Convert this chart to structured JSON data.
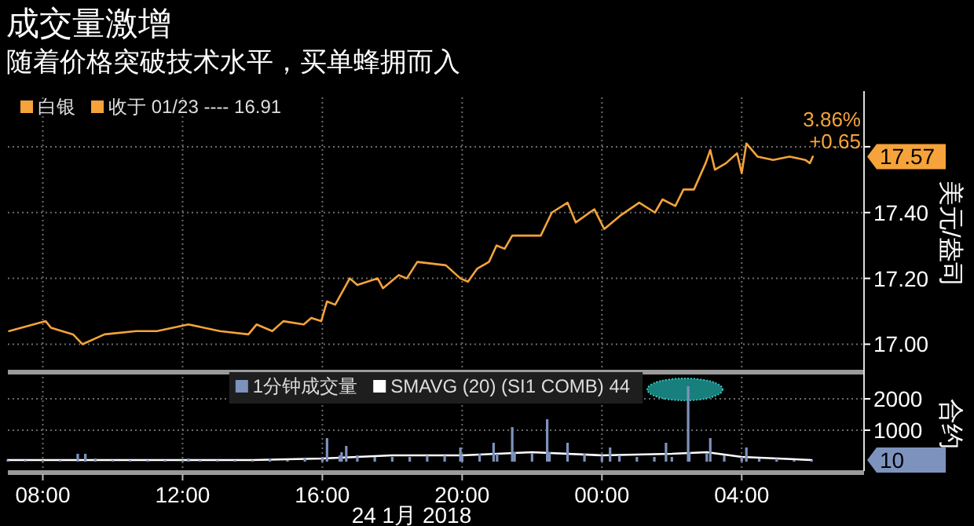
{
  "chart_data": [
    {
      "type": "line",
      "title": "成交量激增",
      "subtitle": "随着价格突破技术水平，买单蜂拥而入",
      "ylabel": "美元/盎司",
      "xlim": [
        "2018-01-24T07:00",
        "2018-01-25T07:30"
      ],
      "ylim": [
        16.92,
        17.75
      ],
      "xticks": [
        "2018-01-24T08:00",
        "2018-01-24T12:00",
        "2018-01-24T16:00",
        "2018-01-24T20:00",
        "2018-01-25T00:00",
        "2018-01-25T04:00"
      ],
      "yticks": [
        {
          "value": 17,
          "label": "17.00"
        },
        {
          "value": 17.2,
          "label": "17.20"
        },
        {
          "value": 17.4,
          "label": "17.40"
        },
        {
          "value": 17.6,
          "label": null
        }
      ],
      "tick_labels": "y",
      "grid": true,
      "legend": "top left",
      "annotations": [
        "收于 01/23 ---- 16.91",
        "3.86%",
        "+0.65",
        "17.57"
      ],
      "series": [
        {
          "name": "白银",
          "color": "#f5a33a",
          "x": [
            "2018-01-24T07:02",
            "2018-01-24T08:05",
            "2018-01-24T08:14",
            "2018-01-24T08:52",
            "2018-01-24T09:08",
            "2018-01-24T09:46",
            "2018-01-24T10:40",
            "2018-01-24T11:16",
            "2018-01-24T12:10",
            "2018-01-24T13:04",
            "2018-01-24T13:53",
            "2018-01-24T14:07",
            "2018-01-24T14:34",
            "2018-01-24T14:53",
            "2018-01-24T15:28",
            "2018-01-24T15:41",
            "2018-01-24T15:58",
            "2018-01-24T16:08",
            "2018-01-24T16:22",
            "2018-01-24T16:47",
            "2018-01-24T17:00",
            "2018-01-24T17:35",
            "2018-01-24T17:44",
            "2018-01-24T18:11",
            "2018-01-24T18:25",
            "2018-01-24T18:43",
            "2018-01-24T19:32",
            "2018-01-24T19:57",
            "2018-01-24T20:10",
            "2018-01-24T20:26",
            "2018-01-24T20:46",
            "2018-01-24T20:59",
            "2018-01-24T21:13",
            "2018-01-24T21:26",
            "2018-01-24T22:15",
            "2018-01-24T22:34",
            "2018-01-24T23:01",
            "2018-01-24T23:15",
            "2018-01-24T23:47",
            "2018-01-25T00:04",
            "2018-01-25T00:31",
            "2018-01-25T01:04",
            "2018-01-25T01:31",
            "2018-01-25T01:44",
            "2018-01-25T02:06",
            "2018-01-25T02:20",
            "2018-01-25T02:38",
            "2018-01-25T02:58",
            "2018-01-25T03:06",
            "2018-01-25T03:14",
            "2018-01-25T03:33",
            "2018-01-25T03:52",
            "2018-01-25T04:00",
            "2018-01-25T04:08",
            "2018-01-25T04:27",
            "2018-01-25T04:54",
            "2018-01-25T05:22",
            "2018-01-25T05:49",
            "2018-01-25T05:57",
            "2018-01-25T06:02"
          ],
          "values": [
            17.04,
            17.07,
            17.05,
            17.03,
            17.0,
            17.03,
            17.04,
            17.04,
            17.06,
            17.04,
            17.03,
            17.06,
            17.04,
            17.07,
            17.06,
            17.08,
            17.07,
            17.13,
            17.12,
            17.2,
            17.18,
            17.2,
            17.17,
            17.21,
            17.2,
            17.25,
            17.24,
            17.2,
            17.19,
            17.23,
            17.25,
            17.3,
            17.29,
            17.33,
            17.33,
            17.4,
            17.43,
            17.37,
            17.41,
            17.35,
            17.39,
            17.43,
            17.4,
            17.44,
            17.42,
            17.47,
            17.47,
            17.55,
            17.59,
            17.53,
            17.55,
            17.58,
            17.52,
            17.61,
            17.57,
            17.56,
            17.57,
            17.56,
            17.55,
            17.57
          ]
        }
      ]
    },
    {
      "type": "bar",
      "ylabel": "合约",
      "xlabel": "24 1月 2018",
      "xlim": [
        "2018-01-24T07:00",
        "2018-01-25T07:30"
      ],
      "ylim": [
        -300,
        2700
      ],
      "xticks": [
        {
          "value": "2018-01-24T08:00",
          "label": "08:00"
        },
        {
          "value": "2018-01-24T12:00",
          "label": "12:00"
        },
        {
          "value": "2018-01-24T16:00",
          "label": "16:00"
        },
        {
          "value": "2018-01-24T20:00",
          "label": "20:00"
        },
        {
          "value": "2018-01-25T00:00",
          "label": "00:00"
        },
        {
          "value": "2018-01-25T04:00",
          "label": "04:00"
        }
      ],
      "yticks": [
        1000,
        2000
      ],
      "grid": true,
      "legend": "top",
      "annotations": [
        "10"
      ],
      "series": [
        {
          "name": "1分钟成交量",
          "color": "#7d93bd",
          "x": [
            "2018-01-24T07:00",
            "2018-01-24T07:30",
            "2018-01-24T08:00",
            "2018-01-24T08:30",
            "2018-01-24T09:00",
            "2018-01-24T09:13",
            "2018-01-24T09:30",
            "2018-01-24T10:00",
            "2018-01-24T10:30",
            "2018-01-24T11:00",
            "2018-01-24T11:30",
            "2018-01-24T12:00",
            "2018-01-24T12:10",
            "2018-01-24T12:30",
            "2018-01-24T13:00",
            "2018-01-24T13:30",
            "2018-01-24T14:00",
            "2018-01-24T14:30",
            "2018-01-24T15:00",
            "2018-01-24T15:30",
            "2018-01-24T16:00",
            "2018-01-24T16:08",
            "2018-01-24T16:30",
            "2018-01-24T16:33",
            "2018-01-24T16:41",
            "2018-01-24T17:00",
            "2018-01-24T17:30",
            "2018-01-24T18:00",
            "2018-01-24T18:30",
            "2018-01-24T19:00",
            "2018-01-24T19:30",
            "2018-01-24T19:57",
            "2018-01-24T20:00",
            "2018-01-24T20:30",
            "2018-01-24T20:54",
            "2018-01-24T21:00",
            "2018-01-24T21:26",
            "2018-01-24T21:30",
            "2018-01-24T22:00",
            "2018-01-24T22:26",
            "2018-01-24T22:30",
            "2018-01-24T23:01",
            "2018-01-24T23:30",
            "2018-01-25T00:00",
            "2018-01-25T00:14",
            "2018-01-25T00:30",
            "2018-01-25T01:00",
            "2018-01-25T01:30",
            "2018-01-25T01:50",
            "2018-01-25T02:00",
            "2018-01-25T02:28",
            "2018-01-25T02:30",
            "2018-01-25T03:00",
            "2018-01-25T03:06",
            "2018-01-25T03:30",
            "2018-01-25T04:00",
            "2018-01-25T04:08",
            "2018-01-25T04:30",
            "2018-01-25T05:00",
            "2018-01-25T05:30",
            "2018-01-25T06:00"
          ],
          "values": [
            50,
            50,
            50,
            50,
            250,
            250,
            100,
            50,
            50,
            50,
            50,
            50,
            100,
            50,
            50,
            50,
            50,
            100,
            50,
            100,
            150,
            750,
            200,
            300,
            500,
            200,
            150,
            150,
            150,
            200,
            200,
            450,
            200,
            250,
            600,
            250,
            1100,
            300,
            250,
            1350,
            300,
            600,
            250,
            200,
            450,
            200,
            150,
            150,
            600,
            150,
            2400,
            300,
            250,
            750,
            200,
            150,
            450,
            100,
            100,
            50,
            50
          ]
        },
        {
          "name": "SMAVG (20) (SI1 COMB) 44",
          "color": "#ffffff",
          "type": "line",
          "x": [
            "2018-01-24T07:00",
            "2018-01-24T10:00",
            "2018-01-24T14:00",
            "2018-01-24T16:00",
            "2018-01-24T18:00",
            "2018-01-24T20:00",
            "2018-01-24T22:00",
            "2018-01-25T00:00",
            "2018-01-25T02:00",
            "2018-01-25T03:00",
            "2018-01-25T04:00",
            "2018-01-25T06:00"
          ],
          "values": [
            50,
            50,
            50,
            100,
            200,
            200,
            300,
            200,
            250,
            300,
            150,
            50
          ]
        }
      ]
    }
  ]
}
